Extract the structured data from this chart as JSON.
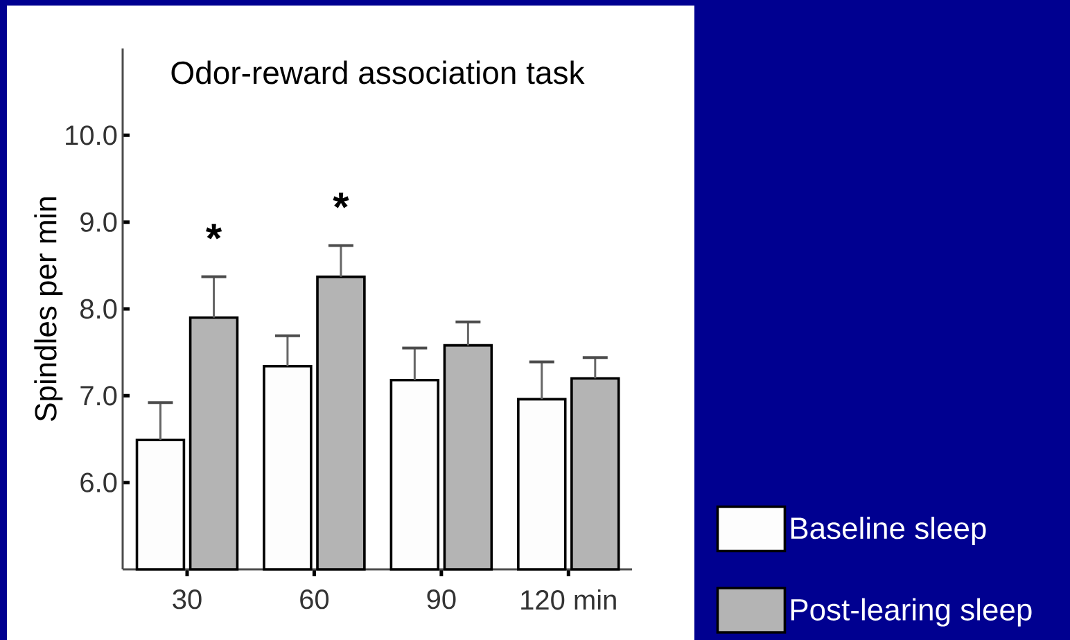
{
  "chart_data": {
    "type": "bar",
    "title": "Odor-reward association task",
    "ylabel": "Spindles per min",
    "categories": [
      "30",
      "60",
      "90",
      "120 min"
    ],
    "series": [
      {
        "name": "Baseline sleep",
        "color": "#fdfdfd",
        "values": [
          6.49,
          7.34,
          7.18,
          6.96
        ],
        "errors": [
          [
            6.49,
            6.92
          ],
          [
            7.34,
            7.69
          ],
          [
            7.18,
            7.55
          ],
          [
            6.96,
            7.39
          ]
        ]
      },
      {
        "name": "Post-learing sleep",
        "color": "#b4b4b4",
        "values": [
          7.9,
          8.37,
          7.58,
          7.2
        ],
        "errors": [
          [
            7.9,
            8.37
          ],
          [
            8.37,
            8.73
          ],
          [
            7.58,
            7.85
          ],
          [
            7.2,
            7.44
          ]
        ]
      }
    ],
    "ylim": [
      5,
      11
    ],
    "yticks": [
      {
        "value": 6,
        "label": "6.0"
      },
      {
        "value": 7,
        "label": "7.0"
      },
      {
        "value": 8,
        "label": "8.0"
      },
      {
        "value": 9,
        "label": "9.0"
      },
      {
        "value": 10,
        "label": "10.0"
      }
    ],
    "annotations": [
      "*",
      "*"
    ],
    "legend": "bottom right"
  }
}
